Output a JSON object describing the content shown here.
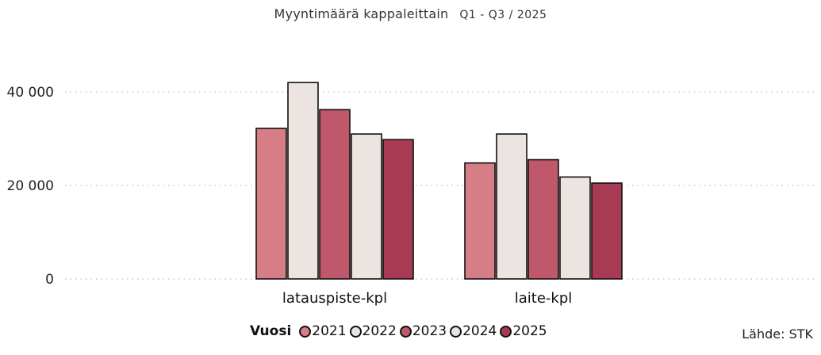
{
  "chart_data": {
    "type": "bar",
    "title": "Myyntimäärä kappaleittain",
    "subtitle": "Q1 - Q3 / 2025",
    "categories": [
      "latauspiste-kpl",
      "laite-kpl"
    ],
    "series": [
      {
        "name": "2021",
        "values": [
          32200,
          24800
        ],
        "color": "#d67d86"
      },
      {
        "name": "2022",
        "values": [
          42000,
          31000
        ],
        "color": "#ebe4e1"
      },
      {
        "name": "2023",
        "values": [
          36200,
          25500
        ],
        "color": "#c0586b"
      },
      {
        "name": "2024",
        "values": [
          31000,
          21800
        ],
        "color": "#ebe4e1"
      },
      {
        "name": "2025",
        "values": [
          29800,
          20500
        ],
        "color": "#a83a54"
      }
    ],
    "yticks": [
      0,
      20000,
      40000
    ],
    "ytick_labels": [
      "0",
      "20 000",
      "40 000"
    ],
    "ylim": [
      0,
      46000
    ],
    "grid": true,
    "legend_title": "Vuosi",
    "legend_position": "bottom"
  },
  "source": "Lähde: STK"
}
